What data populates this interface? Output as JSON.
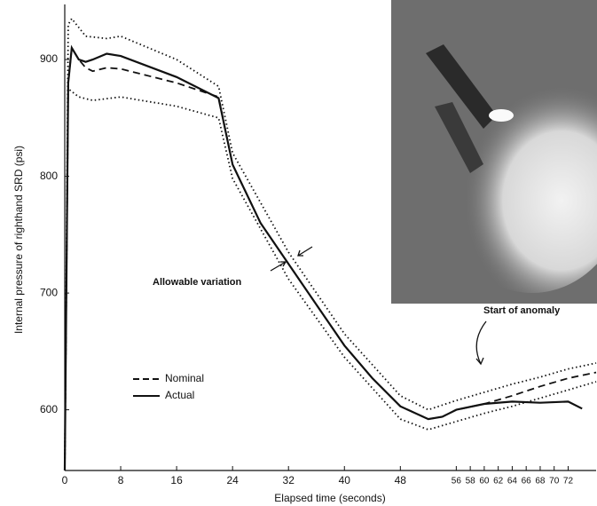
{
  "chart_data": {
    "type": "line",
    "x_label": "Elapsed time (seconds)",
    "y_label": "Internal pressure of righthand SRD (psi)",
    "annotations": [
      "Allowable variation",
      "Start of anomaly"
    ],
    "xlim": [
      0,
      76
    ],
    "ylim": [
      548,
      951
    ],
    "xticks": [
      0,
      8,
      16,
      24,
      32,
      40,
      48,
      56,
      58,
      60,
      62,
      64,
      66,
      68,
      70,
      72
    ],
    "yticks": [
      600,
      700,
      800,
      900
    ],
    "series": [
      {
        "name": "Nominal",
        "color": "#111111",
        "line_style": "dashed",
        "x": [
          0,
          0.5,
          1,
          2,
          3,
          4,
          6,
          8,
          16,
          22,
          24,
          28,
          32,
          36,
          40,
          44,
          48,
          52,
          54,
          56,
          60,
          64,
          68,
          72,
          76
        ],
        "values": [
          548,
          880,
          910,
          900,
          893,
          890,
          893,
          892,
          880,
          868,
          810,
          760,
          725,
          690,
          655,
          627,
          603,
          592,
          594,
          600,
          605,
          612,
          620,
          627,
          632
        ]
      },
      {
        "name": "Actual",
        "color": "#111111",
        "line_style": "solid",
        "x": [
          0,
          0.5,
          1,
          2,
          3,
          4,
          6,
          8,
          16,
          22,
          24,
          28,
          32,
          36,
          40,
          44,
          48,
          52,
          54,
          56,
          60,
          64,
          68,
          72,
          74
        ],
        "values": [
          548,
          880,
          910,
          900,
          898,
          900,
          905,
          903,
          885,
          867,
          810,
          760,
          725,
          690,
          655,
          627,
          603,
          592,
          594,
          600,
          605,
          607,
          606,
          607,
          601
        ]
      },
      {
        "color": "#111111",
        "line_style": "dotted",
        "x": [
          0,
          0.5,
          1,
          3,
          6,
          8,
          16,
          22,
          24,
          32,
          40,
          48,
          52,
          56,
          60,
          64,
          68,
          72,
          76
        ],
        "values": [
          548,
          930,
          935,
          920,
          918,
          920,
          900,
          877,
          820,
          735,
          665,
          612,
          600,
          608,
          615,
          622,
          628,
          635,
          640
        ]
      },
      {
        "color": "#111111",
        "line_style": "dotted",
        "x": [
          0,
          0.5,
          2,
          4,
          8,
          16,
          22,
          24,
          32,
          40,
          48,
          52,
          56,
          60,
          64,
          68,
          72,
          76
        ],
        "values": [
          548,
          875,
          868,
          865,
          868,
          860,
          850,
          798,
          712,
          645,
          592,
          583,
          590,
          597,
          603,
          610,
          617,
          624
        ]
      }
    ]
  }
}
